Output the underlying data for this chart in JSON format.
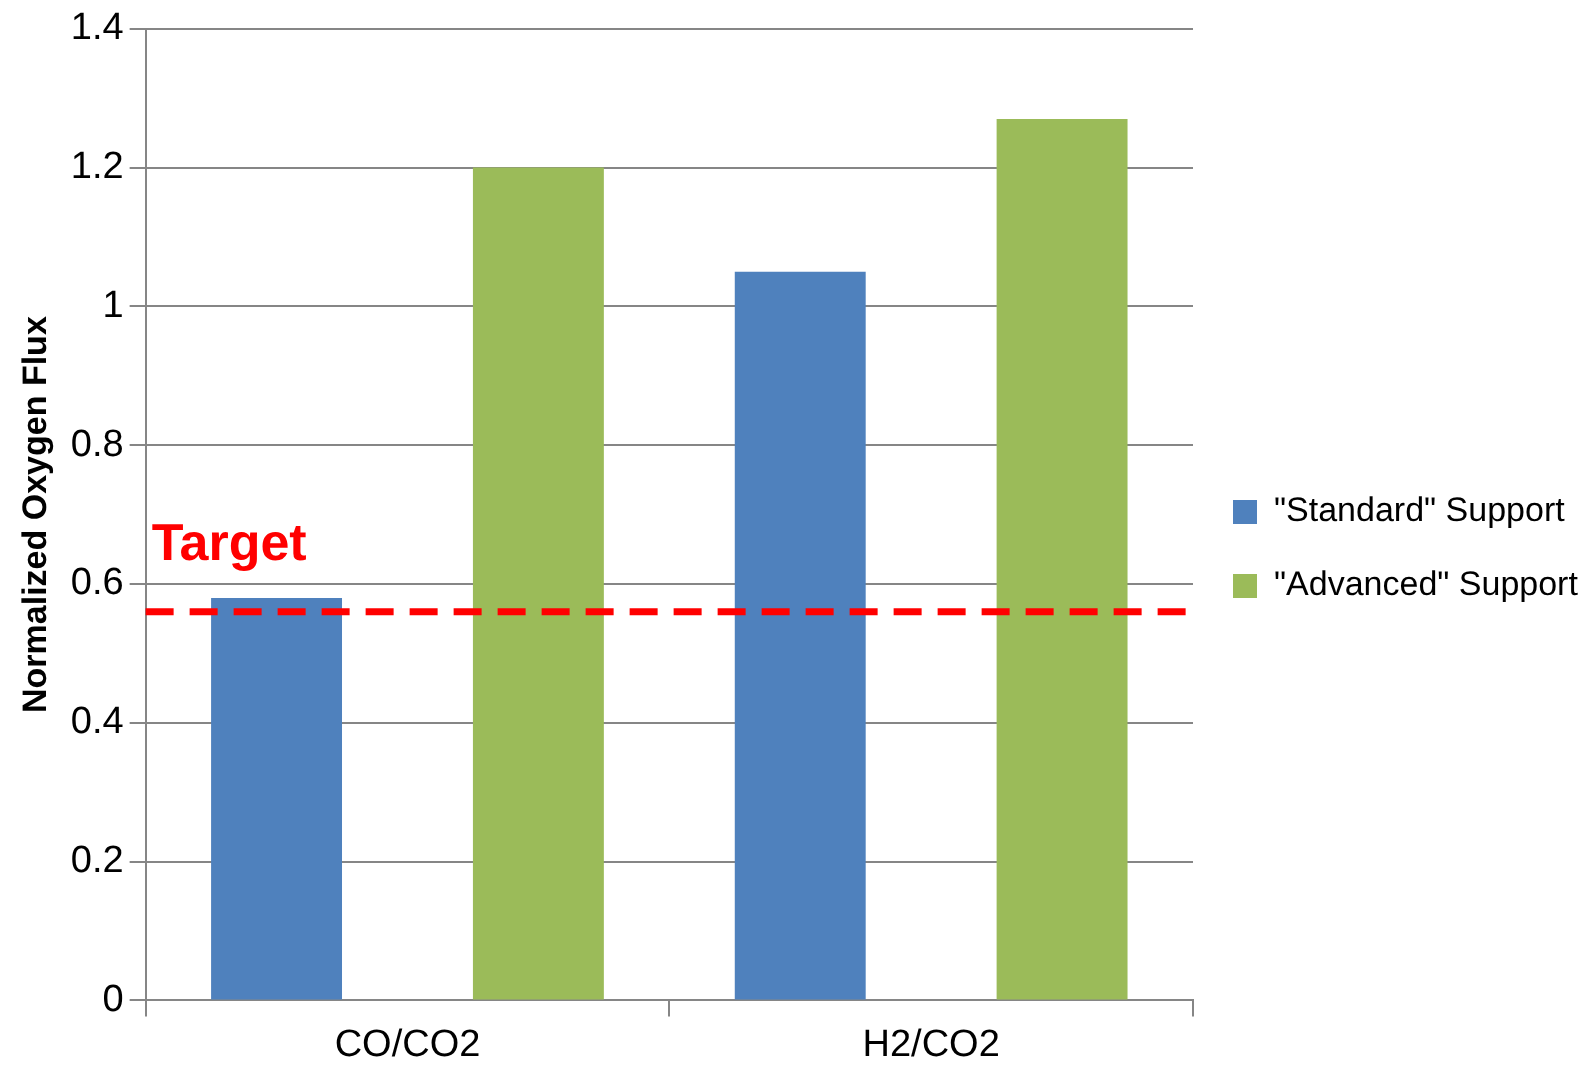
{
  "chart_data": {
    "type": "bar",
    "ylabel": "Normalized Oxygen Flux",
    "categories": [
      "CO/CO2",
      "H2/CO2"
    ],
    "series": [
      {
        "name": "\"Standard\" Support",
        "color": "#4f81bd",
        "values": [
          0.58,
          1.05
        ]
      },
      {
        "name": "\"Advanced\" Support",
        "color": "#9bbb59",
        "values": [
          1.2,
          1.27
        ]
      }
    ],
    "ylim": [
      0,
      1.4
    ],
    "yticks": [
      0,
      0.2,
      0.4,
      0.6,
      0.8,
      1,
      1.2,
      1.4
    ],
    "grid": "y",
    "legend": "right",
    "ref_lines": [
      {
        "axis": "y",
        "value": 0.56,
        "label": "Target",
        "color": "#ff0000",
        "line_style": "dashed"
      }
    ]
  }
}
